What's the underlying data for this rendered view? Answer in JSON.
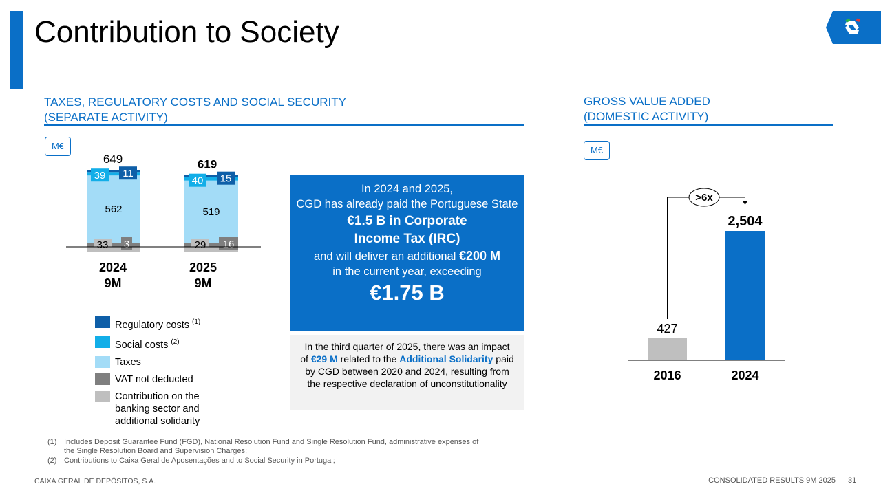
{
  "header": {
    "title": "Contribution to Society",
    "accent_color": "#0a6fc7"
  },
  "left_section": {
    "title_line1": "TAXES, REGULATORY COSTS AND SOCIAL SECURITY",
    "title_line2": "(SEPARATE ACTIVITY)",
    "unit": "M€"
  },
  "right_section": {
    "title_line1": "GROSS VALUE ADDED",
    "title_line2": "(DOMESTIC ACTIVITY)",
    "unit": "M€"
  },
  "legend": [
    {
      "label": "Regulatory costs",
      "note": "(1)",
      "color": "#0e5fa8"
    },
    {
      "label": "Social costs",
      "note": "(2)",
      "color": "#12aee8"
    },
    {
      "label": "Taxes",
      "note": "",
      "color": "#a3dcf7"
    },
    {
      "label": "VAT not deducted",
      "note": "",
      "color": "#7f7f7f"
    },
    {
      "label": "Contribution on the banking sector and additional solidarity",
      "note": "",
      "color": "#bfbfbf"
    }
  ],
  "callout": {
    "line1": "In 2024 and 2025,",
    "line2": "CGD has already paid the Portuguese State",
    "bold1": "€1.5 B in Corporate",
    "bold2": "Income Tax (IRC)",
    "line3_pre": "and will deliver an additional ",
    "line3_bold": "€200 M",
    "line4": "in the current year, exceeding",
    "big": "€1.75 B"
  },
  "note": {
    "t1": "In the third quarter of 2025, there was an impact of ",
    "h1": "€29 M",
    "t2": " related to the ",
    "h2": "Additional Solidarity",
    "t3": " paid by CGD between 2020 and 2024, resulting from the respective declaration of unconstitutionality"
  },
  "footnotes": [
    {
      "num": "(1)",
      "text": "Includes Deposit Guarantee Fund (FGD), National Resolution Fund and Single Resolution Fund, administrative expenses of the Single Resolution Board and Supervision Charges;"
    },
    {
      "num": "(2)",
      "text": "Contributions to Caixa Geral de Aposentações and to Social Security in Portugal;"
    }
  ],
  "footer": {
    "company": "CAIXA GERAL DE DEPÓSITOS, S.A.",
    "report": "CONSOLIDATED RESULTS 9M 2025",
    "page": "31"
  },
  "chart_data": [
    {
      "type": "bar",
      "stacked": true,
      "title": "Taxes, regulatory costs and social security (separate activity)",
      "unit": "M€",
      "categories": [
        "2024 9M",
        "2025 9M"
      ],
      "category_lines": [
        [
          "2024",
          "9M"
        ],
        [
          "2025",
          "9M"
        ]
      ],
      "totals": [
        649,
        619
      ],
      "series": [
        {
          "name": "Contribution on the banking sector and additional solidarity",
          "values": [
            33,
            29
          ],
          "color": "#bfbfbf"
        },
        {
          "name": "VAT not deducted",
          "values": [
            3,
            16
          ],
          "color": "#7f7f7f"
        },
        {
          "name": "Taxes",
          "values": [
            562,
            519
          ],
          "color": "#a3dcf7"
        },
        {
          "name": "Social costs",
          "values": [
            39,
            40
          ],
          "color": "#12aee8"
        },
        {
          "name": "Regulatory costs",
          "values": [
            11,
            15
          ],
          "color": "#0e5fa8"
        }
      ]
    },
    {
      "type": "bar",
      "title": "Gross value added (domestic activity)",
      "unit": "M€",
      "categories": [
        "2016",
        "2024"
      ],
      "values": [
        427,
        2504
      ],
      "value_labels": [
        "427",
        "2,504"
      ],
      "colors": [
        "#bfbfbf",
        "#0a6fc7"
      ],
      "annotation": ">6x",
      "ylim": [
        0,
        2504
      ]
    }
  ]
}
